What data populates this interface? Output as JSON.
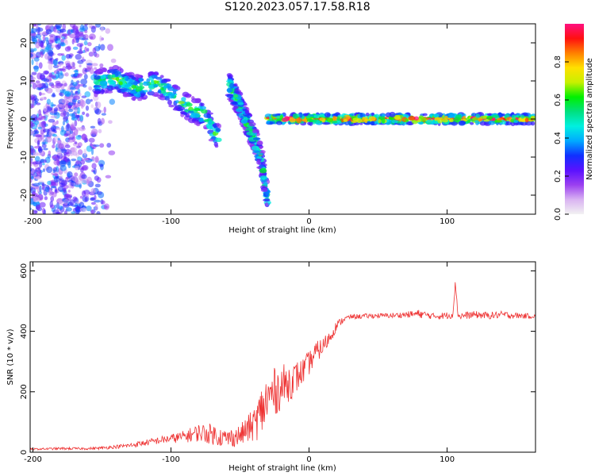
{
  "title": "S120.2023.057.17.58.R18",
  "chart_data": [
    {
      "type": "heatmap",
      "xlabel": "Height of straight line (km)",
      "ylabel": "Frequency (Hz)",
      "xlim": [
        -202,
        164
      ],
      "ylim": [
        -25,
        25
      ],
      "xticks": [
        -200,
        -100,
        0,
        100
      ],
      "yticks": [
        -20,
        -10,
        0,
        10,
        20
      ],
      "colorbar": {
        "label": "Normalized spectral amplitude",
        "ticks": [
          0.0,
          0.2,
          0.4,
          0.6,
          0.8
        ],
        "range": [
          0,
          1
        ],
        "colormap": [
          "#f2f2f2",
          "#d9b3f2",
          "#9b40f0",
          "#5a12ff",
          "#1030ff",
          "#00aaff",
          "#00f0e0",
          "#00e080",
          "#00f000",
          "#c8f000",
          "#ffe000",
          "#ff8000",
          "#ff1010",
          "#ff1080"
        ]
      },
      "features": [
        {
          "name": "broadband noise",
          "x": [
            -202,
            -150
          ],
          "y": [
            -25,
            25
          ],
          "level": 0.15
        },
        {
          "name": "downward-curving branch",
          "points": [
            [
              -155,
              9.5
            ],
            [
              -140,
              10.5
            ],
            [
              -125,
              8
            ],
            [
              -110,
              9.5
            ],
            [
              -95,
              5
            ],
            [
              -85,
              2.5
            ],
            [
              -75,
              1
            ],
            [
              -70,
              -3
            ],
            [
              -65,
              -5
            ]
          ],
          "level": 0.35
        },
        {
          "name": "steep branch",
          "points": [
            [
              -58,
              9
            ],
            [
              -52,
              5
            ],
            [
              -46,
              0
            ],
            [
              -40,
              -5
            ],
            [
              -35,
              -10
            ],
            [
              -30,
              -21
            ]
          ],
          "level": 0.3
        },
        {
          "name": "steady tone",
          "points": [
            [
              -30,
              0
            ],
            [
              0,
              0
            ],
            [
              100,
              0
            ],
            [
              164,
              0
            ]
          ],
          "level": 0.55
        }
      ]
    },
    {
      "type": "line",
      "xlabel": "Height of straight line (km)",
      "ylabel": "SNR (10 * v/v)",
      "xlim": [
        -202,
        164
      ],
      "ylim": [
        0,
        630
      ],
      "xticks": [
        -200,
        -100,
        0,
        100
      ],
      "yticks": [
        0,
        200,
        400,
        600
      ],
      "color": "#ee3333",
      "series": [
        {
          "x": [
            -202,
            -180,
            -160,
            -150,
            -140,
            -130,
            -120,
            -110,
            -100,
            -90,
            -80,
            -70,
            -60,
            -50,
            -45,
            -40,
            -35,
            -30,
            -25,
            -20,
            -15,
            -10,
            -5,
            0,
            5,
            10,
            15,
            20,
            25,
            30,
            40,
            50,
            60,
            70,
            80,
            90,
            100,
            104,
            106,
            108,
            120,
            130,
            140,
            150,
            164
          ],
          "y": [
            10,
            12,
            12,
            14,
            18,
            22,
            30,
            38,
            45,
            52,
            65,
            60,
            45,
            55,
            75,
            90,
            130,
            175,
            200,
            215,
            230,
            245,
            265,
            295,
            330,
            350,
            380,
            420,
            440,
            448,
            450,
            452,
            452,
            455,
            458,
            450,
            452,
            455,
            560,
            450,
            455,
            452,
            455,
            452,
            450
          ],
          "noise": [
            3,
            4,
            4,
            5,
            6,
            8,
            10,
            12,
            15,
            20,
            30,
            35,
            30,
            35,
            45,
            55,
            85,
            90,
            80,
            75,
            65,
            55,
            45,
            40,
            35,
            30,
            25,
            15,
            10,
            8,
            8,
            8,
            8,
            10,
            14,
            10,
            12,
            12,
            12,
            12,
            12,
            12,
            12,
            10,
            8
          ]
        }
      ]
    }
  ]
}
